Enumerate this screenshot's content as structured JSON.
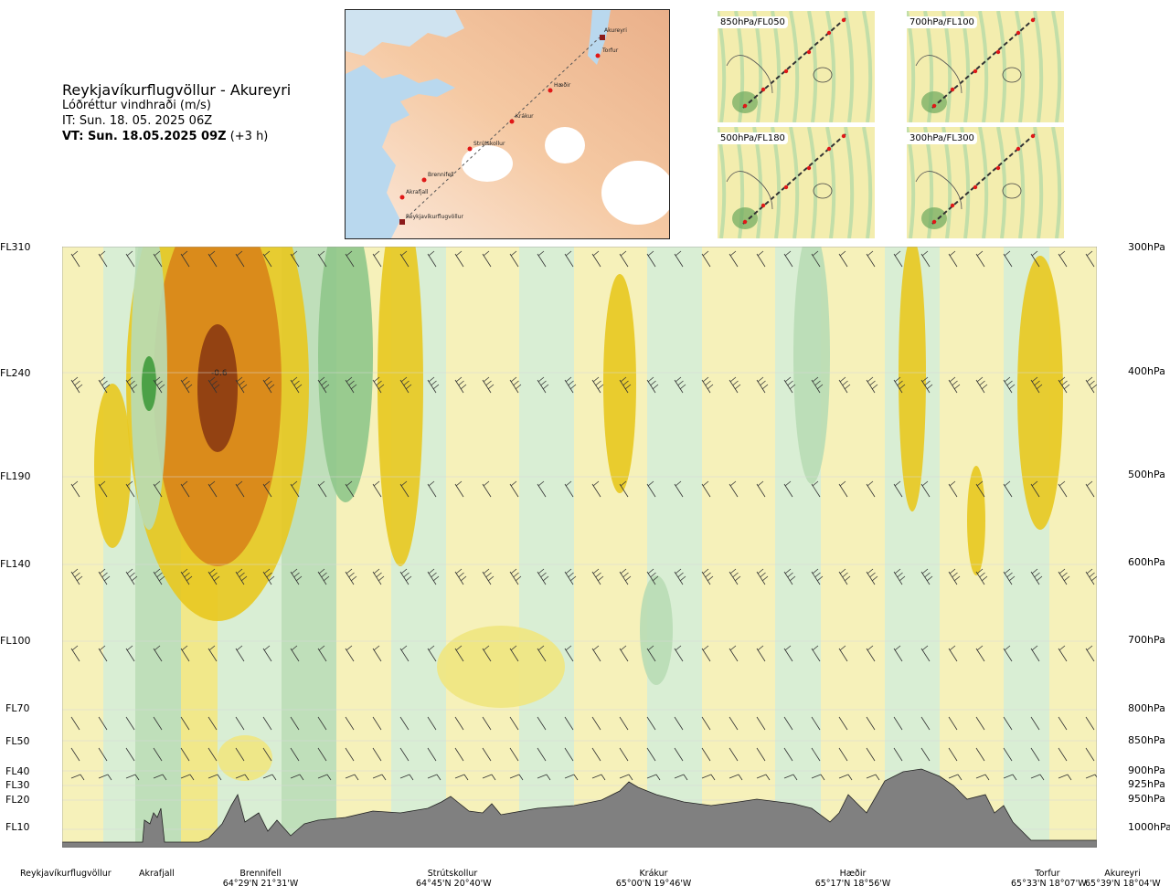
{
  "header": {
    "title": "Reykjavíkurflugvöllur - Akureyri",
    "subtitle": "Lóðréttur vindhraði (m/s)",
    "init_time": "IT: Sun. 18. 05. 2025 06Z",
    "valid_bold": "VT: Sun. 18.05.2025 09Z",
    "valid_rest": " (+3 h)"
  },
  "map": {
    "waypoints": [
      "Akureyri",
      "Torfur",
      "Hæðir",
      "Krákur",
      "Strútskollur",
      "Brennifell",
      "Akrafjall",
      "Reykjavíkurflugvöllur"
    ]
  },
  "minimaps": [
    "850hPa/FL050",
    "700hPa/FL100",
    "500hPa/FL180",
    "300hPa/FL300"
  ],
  "levels": [
    {
      "fl": "FL310",
      "hpa": "300hPa"
    },
    {
      "fl": "FL240",
      "hpa": "400hPa"
    },
    {
      "fl": "FL190",
      "hpa": "500hPa"
    },
    {
      "fl": "FL140",
      "hpa": "600hPa"
    },
    {
      "fl": "FL100",
      "hpa": "700hPa"
    },
    {
      "fl": "FL70",
      "hpa": "800hPa"
    },
    {
      "fl": "FL50",
      "hpa": "850hPa"
    },
    {
      "fl": "FL40",
      "hpa": "900hPa"
    },
    {
      "fl": "FL30",
      "hpa": "925hPa"
    },
    {
      "fl": "FL20",
      "hpa": "950hPa"
    },
    {
      "fl": "FL10",
      "hpa": "1000hPa"
    }
  ],
  "bottom_labels": [
    {
      "name": "Reykjavíkurflugvöllur",
      "coord": ""
    },
    {
      "name": "Akrafjall",
      "coord": ""
    },
    {
      "name": "Brennifell",
      "coord": "64°29'N 21°31'W"
    },
    {
      "name": "Strútskollur",
      "coord": "64°45'N 20°40'W"
    },
    {
      "name": "Krákur",
      "coord": "65°00'N 19°46'W"
    },
    {
      "name": "Hæðir",
      "coord": "65°17'N 18°56'W"
    },
    {
      "name": "Torfur",
      "coord": "65°33'N 18°07'W"
    },
    {
      "name": "Akureyri",
      "coord": "65°39'N 18°04'W"
    }
  ],
  "chart_data": {
    "type": "heatmap",
    "title": "Lóðréttur vindhraði (m/s)",
    "y_pressure_levels_hPa": [
      300,
      400,
      500,
      600,
      700,
      800,
      850,
      900,
      925,
      950,
      1000
    ],
    "y_labels_left": [
      "FL310",
      "FL240",
      "FL190",
      "FL140",
      "FL100",
      "FL70",
      "FL50",
      "FL40",
      "FL30",
      "FL20",
      "FL10"
    ],
    "annotation": "-0.6",
    "colors": {
      "neg_strong": "#8b3a12",
      "neg_mid": "#d8841a",
      "neg_low": "#e8c81f",
      "neg_weak": "#efe680",
      "neg_faint": "#f5efb5",
      "pos_faint": "#d5ecd2",
      "pos_weak": "#b8dbb5",
      "pos_mid": "#8fc78b",
      "pos_strong": "#3f9a3c",
      "terrain": "#808080"
    }
  }
}
